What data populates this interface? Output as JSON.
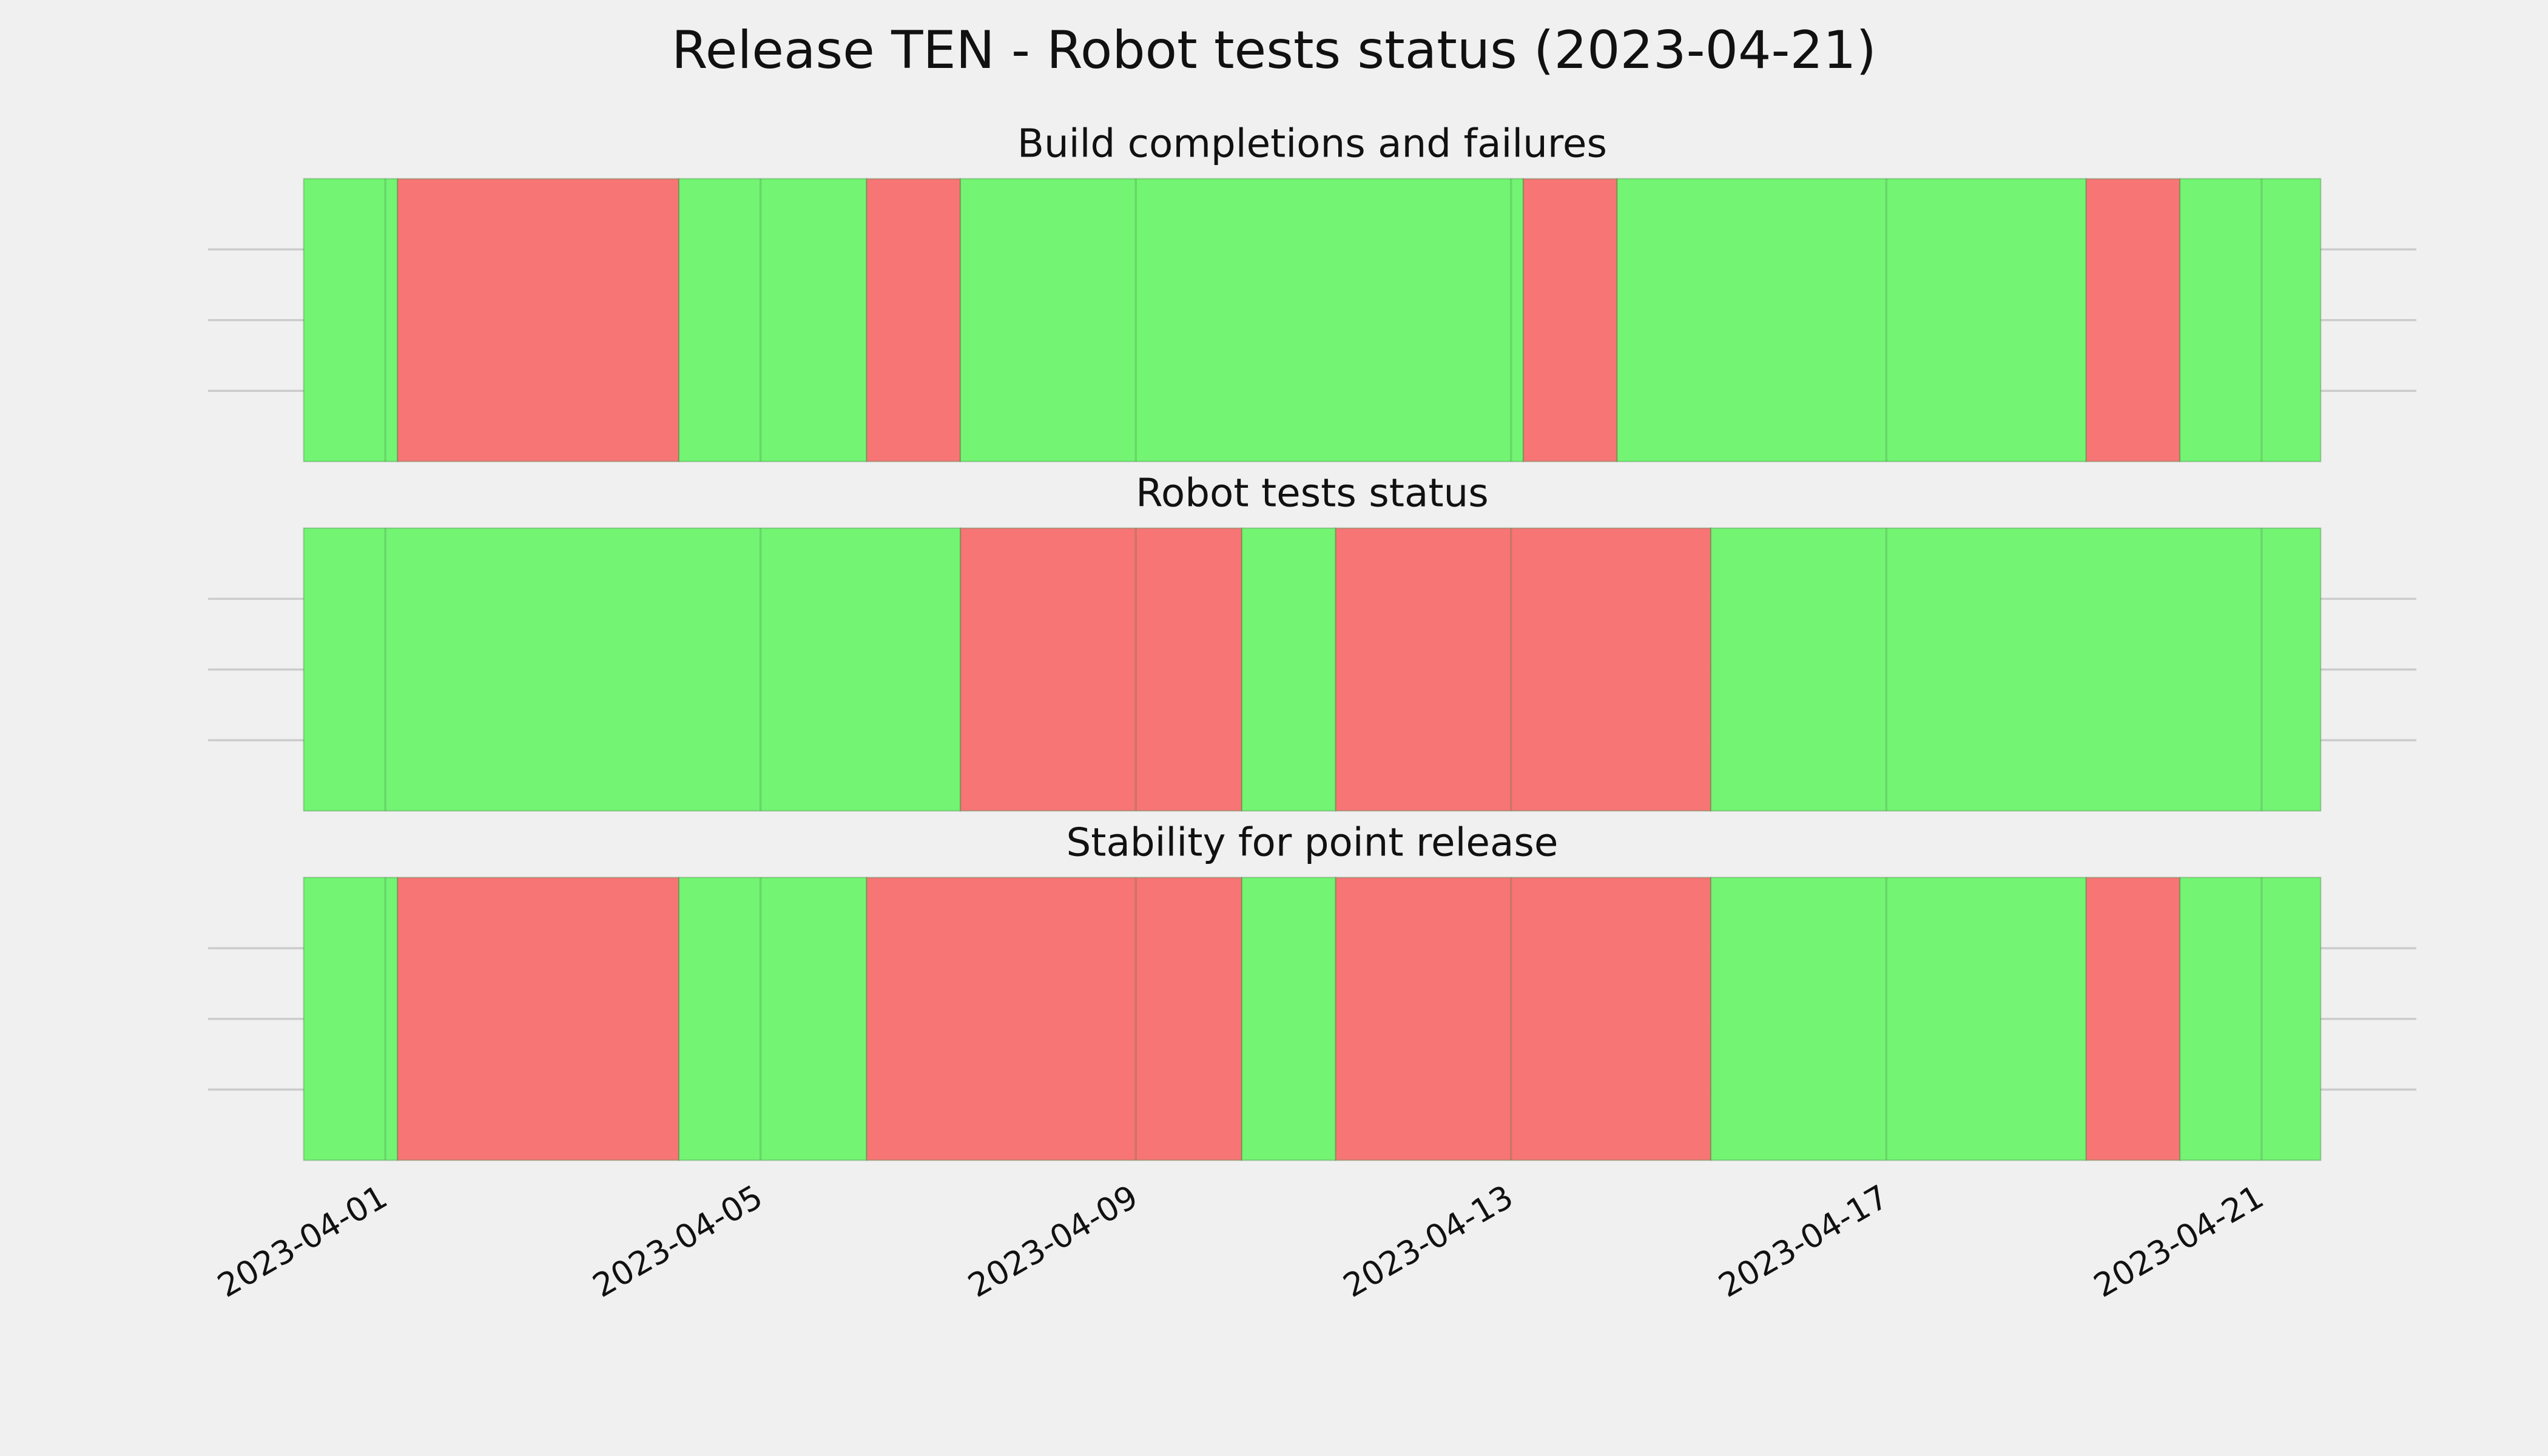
{
  "title": "Release TEN - Robot tests status (2023-04-21)",
  "chart_data": [
    {
      "type": "timeline",
      "title": "Build completions and failures",
      "bounds": [
        -0.87,
        0.13,
        3.13,
        5.13,
        6.13,
        12.13,
        13.13,
        18.13,
        19.13,
        20.63
      ],
      "colors": [
        "#73f573",
        "#f77575",
        "#73f573",
        "#f77575",
        "#73f573",
        "#f77575",
        "#73f573",
        "#f77575",
        "#73f573"
      ],
      "xlim": [
        -1.89,
        21.65
      ],
      "xticks": [
        {
          "value": 0,
          "label": "2023-04-01"
        },
        {
          "value": 4,
          "label": "2023-04-05"
        },
        {
          "value": 8,
          "label": "2023-04-09"
        },
        {
          "value": 12,
          "label": "2023-04-13"
        },
        {
          "value": 16,
          "label": "2023-04-17"
        },
        {
          "value": 20,
          "label": "2023-04-21"
        }
      ],
      "ylim": [
        0,
        1
      ],
      "yticks": [
        0.25,
        0.5,
        0.75
      ],
      "grid": true
    },
    {
      "type": "timeline",
      "title": "Robot tests status",
      "bounds": [
        -0.87,
        6.13,
        9.13,
        10.13,
        14.13,
        20.63
      ],
      "colors": [
        "#73f573",
        "#f77575",
        "#73f573",
        "#f77575",
        "#73f573"
      ],
      "xlim": [
        -1.89,
        21.65
      ],
      "xticks": [
        {
          "value": 0,
          "label": "2023-04-01"
        },
        {
          "value": 4,
          "label": "2023-04-05"
        },
        {
          "value": 8,
          "label": "2023-04-09"
        },
        {
          "value": 12,
          "label": "2023-04-13"
        },
        {
          "value": 16,
          "label": "2023-04-17"
        },
        {
          "value": 20,
          "label": "2023-04-21"
        }
      ],
      "ylim": [
        0,
        1
      ],
      "yticks": [
        0.25,
        0.5,
        0.75
      ],
      "grid": true
    },
    {
      "type": "timeline",
      "title": "Stability for point release",
      "bounds": [
        -0.87,
        0.13,
        3.13,
        5.13,
        9.13,
        10.13,
        14.13,
        18.13,
        19.13,
        20.63
      ],
      "colors": [
        "#73f573",
        "#f77575",
        "#73f573",
        "#f77575",
        "#73f573",
        "#f77575",
        "#73f573",
        "#f77575",
        "#73f573"
      ],
      "xlim": [
        -1.89,
        21.65
      ],
      "xticks": [
        {
          "value": 0,
          "label": "2023-04-01"
        },
        {
          "value": 4,
          "label": "2023-04-05"
        },
        {
          "value": 8,
          "label": "2023-04-09"
        },
        {
          "value": 12,
          "label": "2023-04-13"
        },
        {
          "value": 16,
          "label": "2023-04-17"
        },
        {
          "value": 20,
          "label": "2023-04-21"
        }
      ],
      "ylim": [
        0,
        1
      ],
      "yticks": [
        0.25,
        0.5,
        0.75
      ],
      "grid": true
    }
  ]
}
